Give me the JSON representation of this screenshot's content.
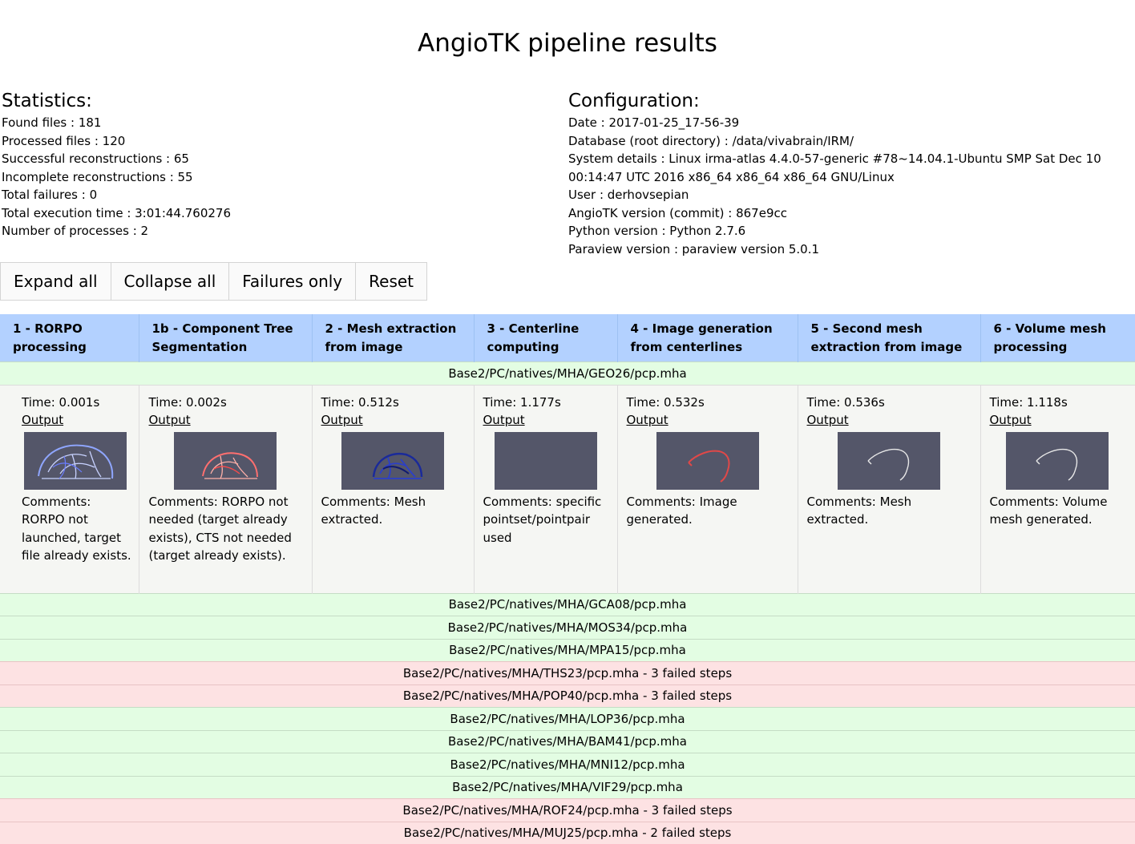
{
  "page": {
    "title": "AngioTK pipeline results"
  },
  "statistics": {
    "heading": "Statistics:",
    "lines": [
      "Found files : 181",
      "Processed files : 120",
      "Successful reconstructions : 65",
      "Incomplete reconstructions : 55",
      "Total failures : 0",
      "Total execution time : 3:01:44.760276",
      "Number of processes : 2"
    ]
  },
  "configuration": {
    "heading": "Configuration:",
    "lines": [
      "Date : 2017-01-25_17-56-39",
      "Database (root directory) : /data/vivabrain/IRM/",
      "System details : Linux irma-atlas 4.4.0-57-generic #78~14.04.1-Ubuntu SMP Sat Dec 10 00:14:47 UTC 2016 x86_64 x86_64 x86_64 GNU/Linux",
      "User : derhovsepian",
      "AngioTK version (commit) : 867e9cc",
      "Python version : Python 2.7.6",
      "Paraview version : paraview version 5.0.1"
    ]
  },
  "toolbar": {
    "expand_all": "Expand all",
    "collapse_all": "Collapse all",
    "failures_only": "Failures only",
    "reset": "Reset"
  },
  "table": {
    "columns": [
      "1 - RORPO processing",
      "1b - Component Tree Segmentation",
      "2 - Mesh extraction from image",
      "3 - Centerline computing",
      "4 - Image generation from centerlines",
      "5 - Second mesh extraction from image",
      "6 - Volume mesh processing"
    ],
    "expanded_file": "Base2/PC/natives/MHA/GEO26/pcp.mha",
    "output_label": "Output",
    "steps": [
      {
        "time": "Time: 0.001s",
        "comment": "Comments: RORPO not launched, target file already exists.",
        "thumb": "rorpo-vessels"
      },
      {
        "time": "Time: 0.002s",
        "comment": "Comments: RORPO not needed (target already exists), CTS not needed (target already exists).",
        "thumb": "cts-vessels"
      },
      {
        "time": "Time: 0.512s",
        "comment": "Comments: Mesh extracted.",
        "thumb": "mesh-vessels"
      },
      {
        "time": "Time: 1.177s",
        "comment": "Comments: specific pointset/pointpair used",
        "thumb": "empty"
      },
      {
        "time": "Time: 0.532s",
        "comment": "Comments: Image generated.",
        "thumb": "red-centerline"
      },
      {
        "time": "Time: 0.536s",
        "comment": "Comments: Mesh extracted.",
        "thumb": "white-centerline"
      },
      {
        "time": "Time: 1.118s",
        "comment": "Comments: Volume mesh generated.",
        "thumb": "white-centerline"
      }
    ],
    "files": [
      {
        "label": "Base2/PC/natives/MHA/GCA08/pcp.mha",
        "status": "ok"
      },
      {
        "label": "Base2/PC/natives/MHA/MOS34/pcp.mha",
        "status": "ok"
      },
      {
        "label": "Base2/PC/natives/MHA/MPA15/pcp.mha",
        "status": "ok"
      },
      {
        "label": "Base2/PC/natives/MHA/THS23/pcp.mha - 3 failed steps",
        "status": "fail"
      },
      {
        "label": "Base2/PC/natives/MHA/POP40/pcp.mha - 3 failed steps",
        "status": "fail"
      },
      {
        "label": "Base2/PC/natives/MHA/LOP36/pcp.mha",
        "status": "ok"
      },
      {
        "label": "Base2/PC/natives/MHA/BAM41/pcp.mha",
        "status": "ok"
      },
      {
        "label": "Base2/PC/natives/MHA/MNI12/pcp.mha",
        "status": "ok"
      },
      {
        "label": "Base2/PC/natives/MHA/VIF29/pcp.mha",
        "status": "ok"
      },
      {
        "label": "Base2/PC/natives/MHA/ROF24/pcp.mha - 3 failed steps",
        "status": "fail"
      },
      {
        "label": "Base2/PC/natives/MHA/MUJ25/pcp.mha - 2 failed steps",
        "status": "fail"
      }
    ]
  },
  "colors": {
    "header_bg": "#b3d1ff",
    "ok_row": "#e3fde3",
    "fail_row": "#fde2e3",
    "thumb_bg": "#545669"
  }
}
